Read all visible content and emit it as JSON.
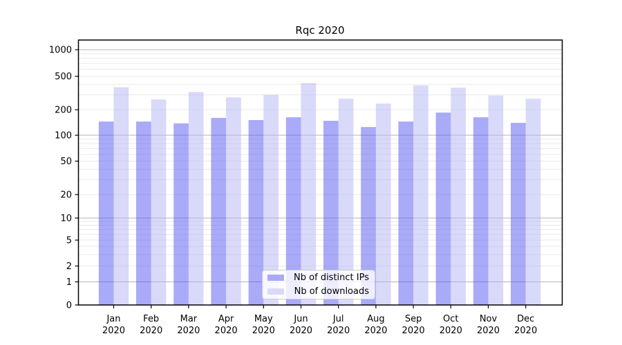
{
  "chart_data": {
    "type": "bar",
    "title": "Rqc 2020",
    "scale": "symlog",
    "grid": true,
    "categories": [
      "Jan",
      "Feb",
      "Mar",
      "Apr",
      "May",
      "Jun",
      "Jul",
      "Aug",
      "Sep",
      "Oct",
      "Nov",
      "Dec"
    ],
    "category_year": "2020",
    "series": [
      {
        "name": "Nb of distinct IPs",
        "values": [
          145,
          145,
          138,
          160,
          151,
          163,
          148,
          125,
          145,
          185,
          163,
          140
        ],
        "base_color": "#5355f1",
        "fill_alpha": 0.5,
        "rendered_color": "#a9aaf8"
      },
      {
        "name": "Nb of downloads",
        "values": [
          370,
          265,
          325,
          280,
          300,
          415,
          270,
          237,
          390,
          365,
          295,
          270
        ],
        "base_color": "#b3b3f3",
        "fill_alpha": 0.5,
        "rendered_color": "#d9d9f9"
      }
    ],
    "y_ticks": [
      0,
      1,
      2,
      5,
      10,
      20,
      50,
      100,
      200,
      500,
      1000
    ],
    "y_major_gridlines": [
      1,
      10,
      100,
      1000
    ],
    "y_minor_gridlines": [
      2,
      3,
      4,
      5,
      6,
      7,
      8,
      9,
      20,
      30,
      40,
      50,
      60,
      70,
      80,
      90,
      200,
      300,
      400,
      500,
      600,
      700,
      800,
      900
    ],
    "ylim": [
      0,
      1300
    ],
    "legend": {
      "position": "lower center",
      "entries": [
        "Nb of distinct IPs",
        "Nb of downloads"
      ]
    },
    "colors": {
      "major_gridline": "#b3b3b3",
      "minor_gridline": "#e9e9e9",
      "spine": "#000000",
      "tick_text": "#000000",
      "background": "#ffffff"
    }
  }
}
